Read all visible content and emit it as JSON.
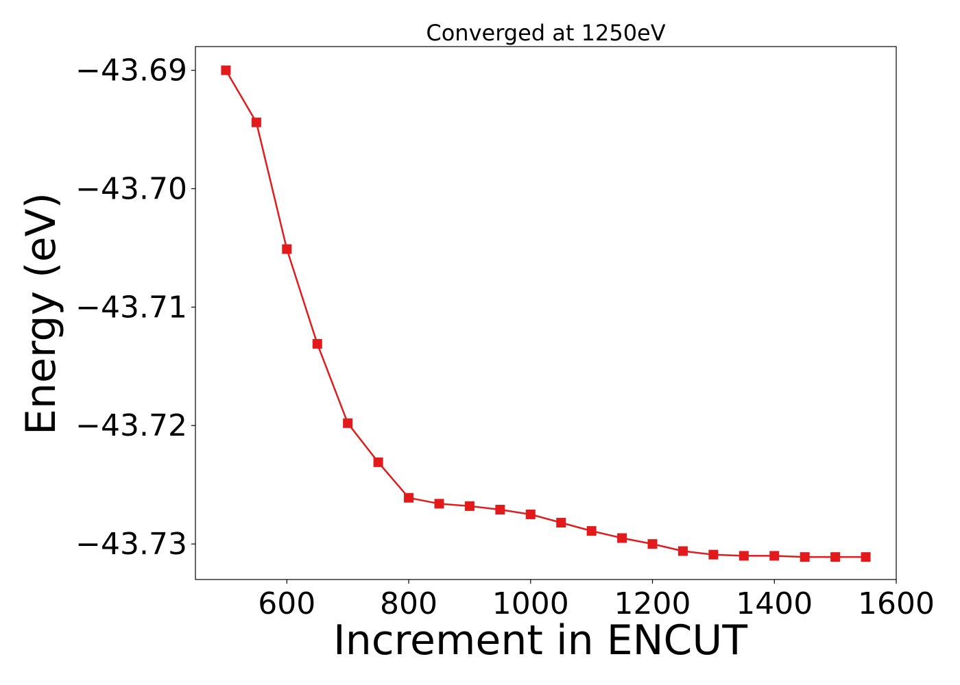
{
  "chart_data": {
    "type": "line",
    "title": "Converged at 1250eV",
    "xlabel": "Increment in ENCUT",
    "ylabel": "Energy (eV)",
    "xlim": [
      450,
      1600
    ],
    "ylim": [
      -43.733,
      -43.688
    ],
    "x_ticks": [
      600,
      800,
      1000,
      1200,
      1400,
      1600
    ],
    "x_tick_labels": [
      "600",
      "800",
      "1000",
      "1200",
      "1400",
      "1600"
    ],
    "y_ticks": [
      -43.69,
      -43.7,
      -43.71,
      -43.72,
      -43.73
    ],
    "y_tick_labels": [
      "−43.69",
      "−43.70",
      "−43.71",
      "−43.72",
      "−43.73"
    ],
    "grid": false,
    "series": [
      {
        "color": "#e31a1c",
        "marker": "square",
        "x": [
          500,
          550,
          600,
          650,
          700,
          750,
          800,
          850,
          900,
          950,
          1000,
          1050,
          1100,
          1150,
          1200,
          1250,
          1300,
          1350,
          1400,
          1450,
          1500,
          1550
        ],
        "y": [
          -43.69,
          -43.6944,
          -43.7051,
          -43.7131,
          -43.7198,
          -43.7231,
          -43.7261,
          -43.7266,
          -43.7268,
          -43.7271,
          -43.7275,
          -43.7282,
          -43.7289,
          -43.7295,
          -43.73,
          -43.7306,
          -43.7309,
          -43.731,
          -43.731,
          -43.7311,
          -43.7311,
          -43.7311
        ]
      }
    ]
  }
}
